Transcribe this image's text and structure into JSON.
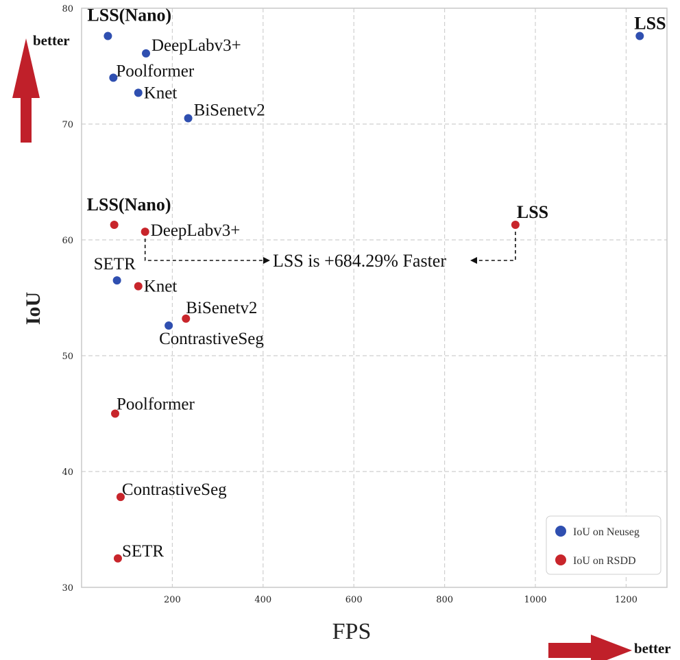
{
  "chart_data": {
    "type": "scatter",
    "xlabel": "FPS",
    "ylabel": "IoU",
    "xlim": [
      0,
      1290
    ],
    "ylim": [
      30,
      80
    ],
    "xticks": [
      200,
      400,
      600,
      800,
      1000,
      1200
    ],
    "yticks": [
      30,
      40,
      50,
      60,
      70,
      80
    ],
    "grid": true,
    "legend_position": "bottom-right",
    "series": [
      {
        "name": "IoU on Neuseg",
        "color": "#2f4fb0",
        "points": [
          {
            "label": "LSS(Nano)",
            "x": 58,
            "y": 77.6,
            "bold": true
          },
          {
            "label": "DeepLabv3+",
            "x": 142,
            "y": 76.1,
            "bold": false
          },
          {
            "label": "Poolformer",
            "x": 70,
            "y": 74.0,
            "bold": false
          },
          {
            "label": "Knet",
            "x": 125,
            "y": 72.7,
            "bold": false
          },
          {
            "label": "BiSenetv2",
            "x": 235,
            "y": 70.5,
            "bold": false
          },
          {
            "label": "LSS",
            "x": 1230,
            "y": 77.6,
            "bold": true
          },
          {
            "label": "SETR",
            "x": 78,
            "y": 56.5,
            "bold": false
          },
          {
            "label": "ContrastiveSeg",
            "x": 192,
            "y": 52.6,
            "bold": false
          }
        ]
      },
      {
        "name": "IoU on RSDD",
        "color": "#c8252b",
        "points": [
          {
            "label": "LSS(Nano)",
            "x": 72,
            "y": 61.3,
            "bold": true
          },
          {
            "label": "DeepLabv3+",
            "x": 140,
            "y": 60.7,
            "bold": false
          },
          {
            "label": "LSS",
            "x": 956,
            "y": 61.3,
            "bold": true
          },
          {
            "label": "Knet",
            "x": 125,
            "y": 56.0,
            "bold": false
          },
          {
            "label": "BiSenetv2",
            "x": 230,
            "y": 53.2,
            "bold": false
          },
          {
            "label": "Poolformer",
            "x": 74,
            "y": 45.0,
            "bold": false
          },
          {
            "label": "ContrastiveSeg",
            "x": 86,
            "y": 37.8,
            "bold": false
          },
          {
            "label": "SETR",
            "x": 80,
            "y": 32.5,
            "bold": false
          }
        ]
      }
    ],
    "annotation": {
      "text": "LSS is +684.29% Faster"
    },
    "better_labels": {
      "y": "better",
      "x": "better"
    },
    "arrow_color": "#c0202a"
  }
}
